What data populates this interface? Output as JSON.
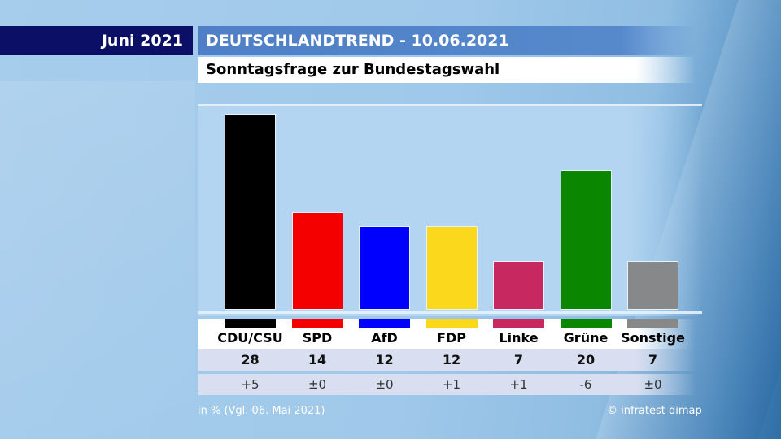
{
  "header": {
    "month": "Juni 2021",
    "title": "DEUTSCHLANDTREND - 10.06.2021",
    "subtitle": "Sonntagsfrage zur Bundestagswahl"
  },
  "footer": {
    "note": "in % (Vgl. 06. Mai 2021)",
    "source": "© infratest dimap"
  },
  "chart_data": {
    "type": "bar",
    "title": "Sonntagsfrage zur Bundestagswahl",
    "xlabel": "",
    "ylabel": "in %",
    "ylim": [
      0,
      28
    ],
    "grid": false,
    "categories": [
      "CDU/CSU",
      "SPD",
      "AfD",
      "FDP",
      "Linke",
      "Grüne",
      "Sonstige"
    ],
    "values": [
      28,
      14,
      12,
      12,
      7,
      20,
      7
    ],
    "value_labels": [
      "28",
      "14",
      "12",
      "12",
      "7",
      "20",
      "7"
    ],
    "changes": [
      "+5",
      "±0",
      "±0",
      "+1",
      "+1",
      "-6",
      "±0"
    ],
    "colors": [
      "#000000",
      "#f50000",
      "#0000ff",
      "#fbd81c",
      "#c82860",
      "#0a8600",
      "#86888a"
    ]
  }
}
